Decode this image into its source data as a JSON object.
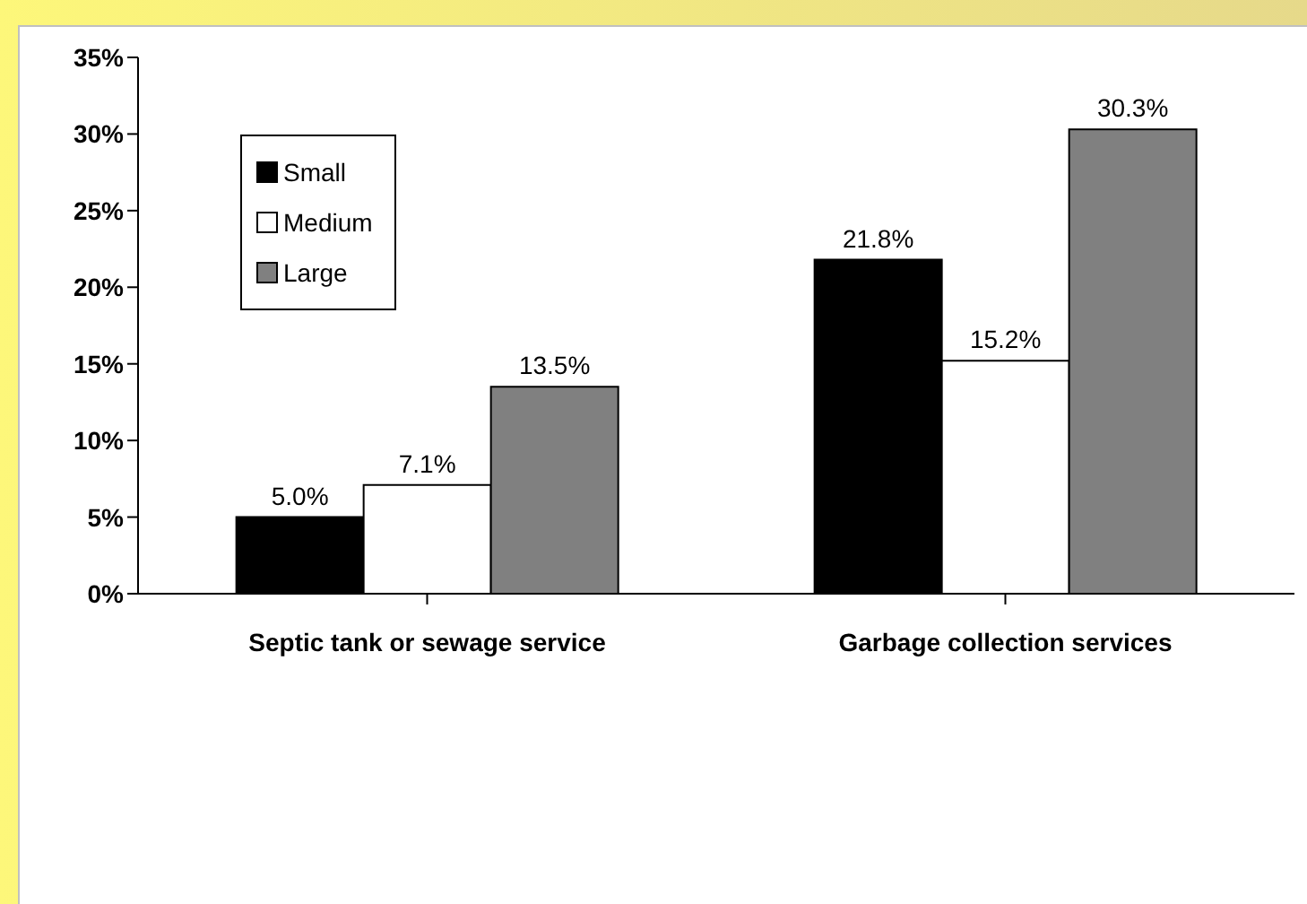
{
  "chart_data": {
    "type": "bar",
    "categories": [
      "Septic tank or sewage service",
      "Garbage collection services"
    ],
    "series": [
      {
        "name": "Small",
        "color": "#000000",
        "values": [
          5.0,
          21.8
        ],
        "value_labels": [
          "5.0%",
          "21.8%"
        ]
      },
      {
        "name": "Medium",
        "color": "#ffffff",
        "values": [
          7.1,
          15.2
        ],
        "value_labels": [
          "7.1%",
          "15.2%"
        ]
      },
      {
        "name": "Large",
        "color": "#808080",
        "values": [
          13.5,
          30.3
        ],
        "value_labels": [
          "13.5%",
          "30.3%"
        ]
      }
    ],
    "ylim": [
      0,
      35
    ],
    "yticks": [
      {
        "value": 0,
        "label": "0%"
      },
      {
        "value": 5,
        "label": "5%"
      },
      {
        "value": 10,
        "label": "10%"
      },
      {
        "value": 15,
        "label": "15%"
      },
      {
        "value": 20,
        "label": "20%"
      },
      {
        "value": 25,
        "label": "25%"
      },
      {
        "value": 30,
        "label": "30%"
      },
      {
        "value": 35,
        "label": "35%"
      }
    ],
    "grid": false,
    "legend": "top left"
  }
}
